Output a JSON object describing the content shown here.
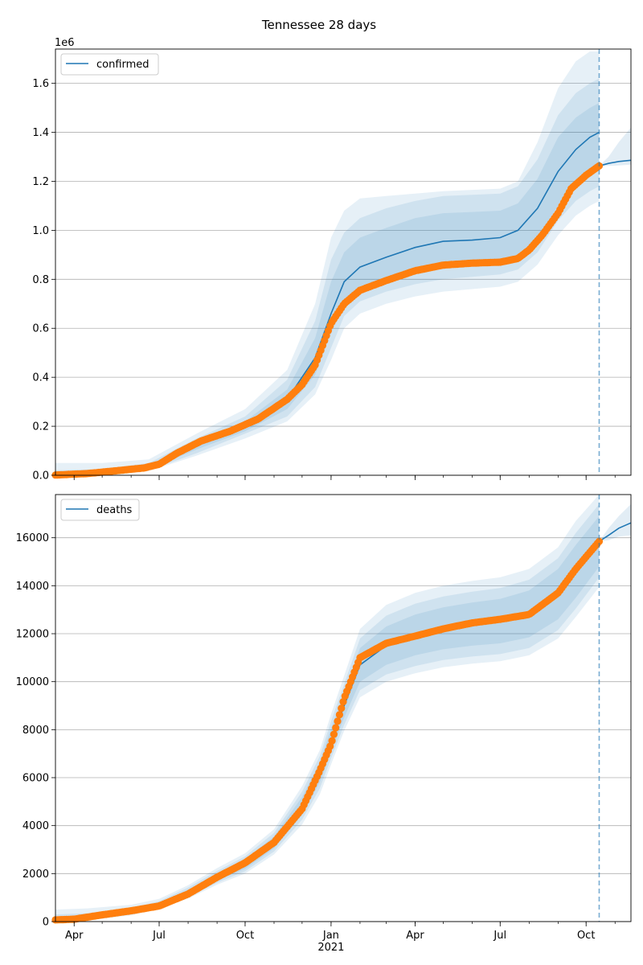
{
  "title": "Tennessee 28 days",
  "chart_data": [
    {
      "type": "line",
      "legend": {
        "label": "confirmed",
        "placement": "top-left"
      },
      "y_multiplier_label": "1e6",
      "ylim": [
        0,
        1.74
      ],
      "yticks": [
        0.0,
        0.2,
        0.4,
        0.6,
        0.8,
        1.0,
        1.2,
        1.4,
        1.6
      ],
      "ytick_labels": [
        "0.0",
        "0.2",
        "0.4",
        "0.6",
        "0.8",
        "1.0",
        "1.2",
        "1.4",
        "1.6"
      ],
      "grid": "y",
      "vline_date": "2021-10-15",
      "fit": {
        "x": [
          "2020-03-12",
          "2020-05-01",
          "2020-06-20",
          "2020-08-10",
          "2020-10-01",
          "2020-11-15",
          "2020-12-15",
          "2021-01-01",
          "2021-01-15",
          "2021-02-01",
          "2021-03-01",
          "2021-04-01",
          "2021-05-01",
          "2021-06-01",
          "2021-07-01",
          "2021-07-20",
          "2021-08-10",
          "2021-09-01",
          "2021-09-20",
          "2021-10-05",
          "2021-10-15"
        ],
        "y": [
          0.003,
          0.01,
          0.03,
          0.12,
          0.2,
          0.31,
          0.48,
          0.66,
          0.79,
          0.85,
          0.89,
          0.93,
          0.955,
          0.96,
          0.97,
          1.0,
          1.09,
          1.24,
          1.33,
          1.38,
          1.4
        ]
      },
      "band_inner": {
        "lower": [
          0.001,
          0.007,
          0.024,
          0.105,
          0.18,
          0.27,
          0.41,
          0.58,
          0.7,
          0.76,
          0.8,
          0.83,
          0.85,
          0.86,
          0.87,
          0.89,
          0.97,
          1.1,
          1.19,
          1.23,
          1.26
        ],
        "upper": [
          0.008,
          0.015,
          0.04,
          0.135,
          0.22,
          0.35,
          0.56,
          0.79,
          0.91,
          0.97,
          1.01,
          1.05,
          1.07,
          1.075,
          1.08,
          1.11,
          1.21,
          1.38,
          1.46,
          1.5,
          1.52
        ]
      },
      "band_mid": {
        "lower": [
          0.0,
          0.006,
          0.02,
          0.09,
          0.17,
          0.24,
          0.36,
          0.52,
          0.65,
          0.71,
          0.75,
          0.78,
          0.8,
          0.81,
          0.82,
          0.84,
          0.91,
          1.04,
          1.12,
          1.16,
          1.18
        ],
        "upper": [
          0.02,
          0.025,
          0.05,
          0.15,
          0.24,
          0.39,
          0.63,
          0.88,
          0.99,
          1.05,
          1.09,
          1.12,
          1.14,
          1.145,
          1.15,
          1.18,
          1.29,
          1.47,
          1.56,
          1.6,
          1.62
        ]
      },
      "band_outer": {
        "lower": [
          0.0,
          0.004,
          0.017,
          0.08,
          0.15,
          0.22,
          0.33,
          0.47,
          0.6,
          0.66,
          0.7,
          0.73,
          0.75,
          0.76,
          0.77,
          0.79,
          0.86,
          0.98,
          1.06,
          1.1,
          1.12
        ],
        "upper": [
          0.05,
          0.05,
          0.065,
          0.17,
          0.27,
          0.43,
          0.7,
          0.97,
          1.08,
          1.13,
          1.14,
          1.15,
          1.16,
          1.165,
          1.17,
          1.2,
          1.36,
          1.58,
          1.69,
          1.73,
          1.73
        ]
      },
      "forecast": {
        "x": [
          "2021-10-15",
          "2021-10-25",
          "2021-11-05",
          "2021-11-18"
        ],
        "y": [
          1.263,
          1.273,
          1.281,
          1.286
        ],
        "lower": [
          1.263,
          1.263,
          1.265,
          1.268
        ],
        "upper": [
          1.263,
          1.3,
          1.36,
          1.42
        ]
      },
      "observed_anchors": {
        "x": [
          "2020-03-12",
          "2020-04-15",
          "2020-05-15",
          "2020-06-15",
          "2020-07-01",
          "2020-07-20",
          "2020-08-15",
          "2020-09-15",
          "2020-10-15",
          "2020-11-15",
          "2020-12-01",
          "2020-12-15",
          "2021-01-01",
          "2021-01-15",
          "2021-02-01",
          "2021-03-01",
          "2021-04-01",
          "2021-05-01",
          "2021-06-01",
          "2021-07-01",
          "2021-07-20",
          "2021-08-01",
          "2021-08-15",
          "2021-09-01",
          "2021-09-15",
          "2021-10-01",
          "2021-10-15"
        ],
        "y": [
          0.001,
          0.007,
          0.018,
          0.03,
          0.045,
          0.09,
          0.14,
          0.18,
          0.23,
          0.31,
          0.37,
          0.45,
          0.62,
          0.7,
          0.755,
          0.795,
          0.835,
          0.858,
          0.866,
          0.87,
          0.885,
          0.92,
          0.98,
          1.07,
          1.17,
          1.225,
          1.263
        ]
      }
    },
    {
      "type": "line",
      "legend": {
        "label": "deaths",
        "placement": "top-left"
      },
      "ylim": [
        0,
        17800
      ],
      "yticks": [
        0,
        2000,
        4000,
        6000,
        8000,
        10000,
        12000,
        14000,
        16000
      ],
      "ytick_labels": [
        "0",
        "2000",
        "4000",
        "6000",
        "8000",
        "10000",
        "12000",
        "14000",
        "16000"
      ],
      "grid": "y",
      "vline_date": "2021-10-15",
      "fit": {
        "x": [
          "2020-03-12",
          "2020-04-15",
          "2020-06-01",
          "2020-07-01",
          "2020-08-01",
          "2020-09-01",
          "2020-10-01",
          "2020-11-01",
          "2020-12-01",
          "2020-12-20",
          "2021-01-01",
          "2021-01-15",
          "2021-02-01",
          "2021-03-01",
          "2021-04-01",
          "2021-05-01",
          "2021-06-01",
          "2021-07-01",
          "2021-08-01",
          "2021-09-01",
          "2021-09-20",
          "2021-10-15"
        ],
        "y": [
          50,
          120,
          400,
          700,
          1200,
          1850,
          2400,
          3300,
          4800,
          6200,
          7500,
          9000,
          10700,
          11500,
          11950,
          12250,
          12450,
          12600,
          12900,
          13700,
          14600,
          15850
        ]
      },
      "band_inner": {
        "lower": [
          20,
          90,
          350,
          620,
          1080,
          1700,
          2200,
          3050,
          4450,
          5800,
          7050,
          8500,
          10000,
          10700,
          11100,
          11350,
          11500,
          11600,
          11850,
          12600,
          13500,
          14800
        ],
        "upper": [
          150,
          200,
          470,
          780,
          1330,
          2000,
          2600,
          3550,
          5200,
          6650,
          8050,
          9550,
          11400,
          12300,
          12800,
          13100,
          13300,
          13450,
          13800,
          14700,
          15700,
          16900
        ]
      },
      "band_mid": {
        "lower": [
          5,
          70,
          300,
          580,
          1020,
          1620,
          2100,
          2920,
          4250,
          5550,
          6800,
          8200,
          9650,
          10300,
          10650,
          10900,
          11050,
          11150,
          11400,
          12150,
          13050,
          14350
        ],
        "upper": [
          300,
          350,
          560,
          850,
          1420,
          2110,
          2720,
          3700,
          5420,
          6900,
          8350,
          9900,
          11800,
          12750,
          13250,
          13550,
          13750,
          13900,
          14250,
          15150,
          16200,
          17400
        ]
      },
      "band_outer": {
        "lower": [
          0,
          50,
          260,
          540,
          960,
          1540,
          2000,
          2800,
          4050,
          5300,
          6550,
          7950,
          9350,
          10000,
          10350,
          10600,
          10750,
          10850,
          11100,
          11800,
          12700,
          13950
        ],
        "upper": [
          500,
          550,
          700,
          950,
          1520,
          2230,
          2850,
          3850,
          5650,
          7150,
          8650,
          10250,
          12200,
          13200,
          13700,
          14000,
          14200,
          14350,
          14700,
          15600,
          16700,
          17800
        ]
      },
      "forecast": {
        "x": [
          "2021-10-15",
          "2021-10-25",
          "2021-11-05",
          "2021-11-18"
        ],
        "y": [
          15850,
          16100,
          16400,
          16620
        ],
        "lower": [
          15850,
          15900,
          16050,
          16100
        ],
        "upper": [
          15850,
          16400,
          16900,
          17400
        ]
      },
      "observed_anchors": {
        "x": [
          "2020-03-12",
          "2020-04-01",
          "2020-05-01",
          "2020-06-01",
          "2020-07-01",
          "2020-08-01",
          "2020-09-01",
          "2020-10-01",
          "2020-11-01",
          "2020-12-01",
          "2020-12-20",
          "2021-01-01",
          "2021-01-15",
          "2021-02-01",
          "2021-03-01",
          "2021-04-01",
          "2021-05-01",
          "2021-06-01",
          "2021-07-01",
          "2021-08-01",
          "2021-09-01",
          "2021-09-20",
          "2021-10-15"
        ],
        "y": [
          70,
          100,
          280,
          450,
          650,
          1150,
          1850,
          2450,
          3300,
          4700,
          6300,
          7400,
          9300,
          11000,
          11600,
          11900,
          12200,
          12450,
          12600,
          12800,
          13700,
          14700,
          15850
        ]
      }
    }
  ],
  "x_axis": {
    "range": [
      "2020-03-12",
      "2021-11-18"
    ],
    "major_ticks": [
      "2020-04-01",
      "2020-07-01",
      "2020-10-01",
      "2021-01-01",
      "2021-04-01",
      "2021-07-01",
      "2021-10-01"
    ],
    "major_labels": [
      "Apr",
      "Jul",
      "Oct",
      "Jan",
      "Apr",
      "Jul",
      "Oct"
    ],
    "year_label": "2021",
    "year_under": "2021-01-01"
  },
  "colors": {
    "fit": "#1f77b4",
    "band": "#1f77b4",
    "observed": "#ff7f0e",
    "grid": "#b0b0b0",
    "vline": "#1f77b4"
  }
}
